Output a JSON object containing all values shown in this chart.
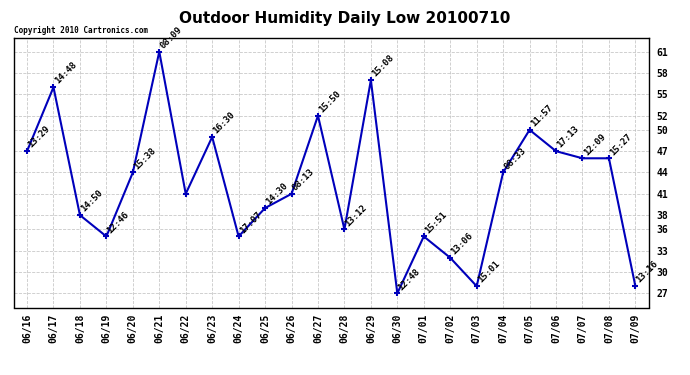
{
  "title": "Outdoor Humidity Daily Low 20100710",
  "copyright": "Copyright 2010 Cartronics.com",
  "x_labels": [
    "06/16",
    "06/17",
    "06/18",
    "06/19",
    "06/20",
    "06/21",
    "06/22",
    "06/23",
    "06/24",
    "06/25",
    "06/26",
    "06/27",
    "06/28",
    "06/29",
    "06/30",
    "07/01",
    "07/02",
    "07/03",
    "07/04",
    "07/05",
    "07/06",
    "07/07",
    "07/08",
    "07/09"
  ],
  "y_values": [
    47,
    56,
    38,
    35,
    44,
    61,
    41,
    49,
    35,
    39,
    41,
    52,
    36,
    57,
    27,
    35,
    32,
    28,
    44,
    50,
    47,
    46,
    46,
    28
  ],
  "time_labels": [
    "13:29",
    "14:48",
    "14:50",
    "12:46",
    "15:38",
    "08:09",
    "",
    "16:30",
    "17:07",
    "14:30",
    "08:13",
    "15:50",
    "13:12",
    "15:08",
    "12:48",
    "15:51",
    "13:06",
    "15:01",
    "08:33",
    "11:57",
    "17:13",
    "12:09",
    "15:27",
    "13:16"
  ],
  "ylim": [
    25,
    63
  ],
  "yticks": [
    27,
    30,
    33,
    36,
    38,
    41,
    44,
    47,
    50,
    52,
    55,
    58,
    61
  ],
  "line_color": "#0000bb",
  "marker_color": "#0000bb",
  "background_color": "#ffffff",
  "grid_color": "#bbbbbb",
  "title_fontsize": 11,
  "label_fontsize": 6.5,
  "tick_fontsize": 7,
  "copyright_fontsize": 5.5
}
